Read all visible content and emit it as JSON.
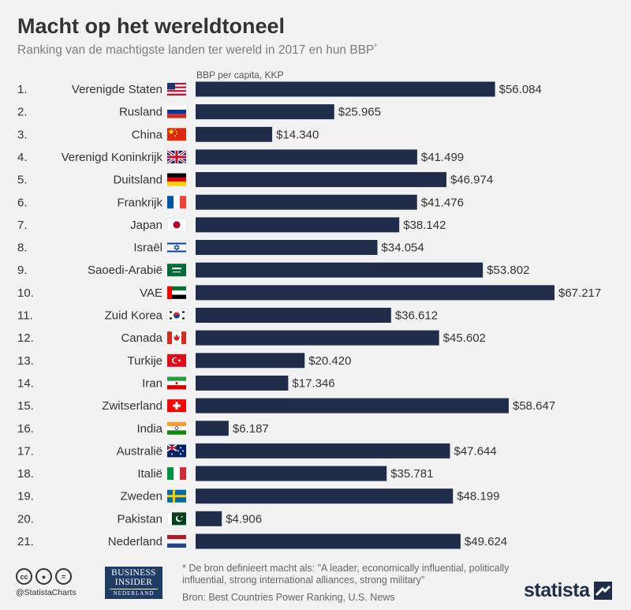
{
  "title": "Macht op het wereldtoneel",
  "subtitle": "Ranking van de machtigste landen ter wereld in 2017 en hun BBP",
  "subtitle_mark": "*",
  "chart_data": {
    "type": "bar",
    "orientation": "horizontal",
    "value_axis_label": "BBP per capita, KKP",
    "bar_color": "#1f2d4a",
    "rows": [
      {
        "rank": "1.",
        "country": "Verenigde Staten",
        "flag": "us-flag-icon",
        "value": 56084,
        "label": "$56.084"
      },
      {
        "rank": "2.",
        "country": "Rusland",
        "flag": "russia-flag-icon",
        "value": 25965,
        "label": "$25.965"
      },
      {
        "rank": "3.",
        "country": "China",
        "flag": "china-flag-icon",
        "value": 14340,
        "label": "$14.340"
      },
      {
        "rank": "4.",
        "country": "Verenigd Koninkrijk",
        "flag": "uk-flag-icon",
        "value": 41499,
        "label": "$41.499"
      },
      {
        "rank": "5.",
        "country": "Duitsland",
        "flag": "germany-flag-icon",
        "value": 46974,
        "label": "$46.974"
      },
      {
        "rank": "6.",
        "country": "Frankrijk",
        "flag": "france-flag-icon",
        "value": 41476,
        "label": "$41.476"
      },
      {
        "rank": "7.",
        "country": "Japan",
        "flag": "japan-flag-icon",
        "value": 38142,
        "label": "$38.142"
      },
      {
        "rank": "8.",
        "country": "Israël",
        "flag": "israel-flag-icon",
        "value": 34054,
        "label": "$34.054"
      },
      {
        "rank": "9.",
        "country": "Saoedi-Arabië",
        "flag": "saudi-flag-icon",
        "value": 53802,
        "label": "$53.802"
      },
      {
        "rank": "10.",
        "country": "VAE",
        "flag": "uae-flag-icon",
        "value": 67217,
        "label": "$67.217"
      },
      {
        "rank": "11.",
        "country": "Zuid Korea",
        "flag": "south-korea-flag-icon",
        "value": 36612,
        "label": "$36.612"
      },
      {
        "rank": "12.",
        "country": "Canada",
        "flag": "canada-flag-icon",
        "value": 45602,
        "label": "$45.602"
      },
      {
        "rank": "13.",
        "country": "Turkije",
        "flag": "turkey-flag-icon",
        "value": 20420,
        "label": "$20.420"
      },
      {
        "rank": "14.",
        "country": "Iran",
        "flag": "iran-flag-icon",
        "value": 17346,
        "label": "$17.346"
      },
      {
        "rank": "15.",
        "country": "Zwitserland",
        "flag": "switzerland-flag-icon",
        "value": 58647,
        "label": "$58.647"
      },
      {
        "rank": "16.",
        "country": "India",
        "flag": "india-flag-icon",
        "value": 6187,
        "label": "$6.187"
      },
      {
        "rank": "17.",
        "country": "Australië",
        "flag": "australia-flag-icon",
        "value": 47644,
        "label": "$47.644"
      },
      {
        "rank": "18.",
        "country": "Italië",
        "flag": "italy-flag-icon",
        "value": 35781,
        "label": "$35.781"
      },
      {
        "rank": "19.",
        "country": "Zweden",
        "flag": "sweden-flag-icon",
        "value": 48199,
        "label": "$48.199"
      },
      {
        "rank": "20.",
        "country": "Pakistan",
        "flag": "pakistan-flag-icon",
        "value": 4906,
        "label": "$4.906"
      },
      {
        "rank": "21.",
        "country": "Nederland",
        "flag": "netherlands-flag-icon",
        "value": 49624,
        "label": "$49.624"
      }
    ]
  },
  "footer": {
    "handle": "@StatistaCharts",
    "license_icons": [
      "cc",
      "by",
      "nd"
    ],
    "publisher_line1": "BUSINESS",
    "publisher_line2": "INSIDER",
    "publisher_line3": "NEDERLAND",
    "footnote": "* De bron definieert macht als: \"A leader, economically influential, politically influential, strong international alliances, strong military\"",
    "source": "Bron: Best Countries Power Ranking, U.S. News",
    "brand": "statista"
  }
}
